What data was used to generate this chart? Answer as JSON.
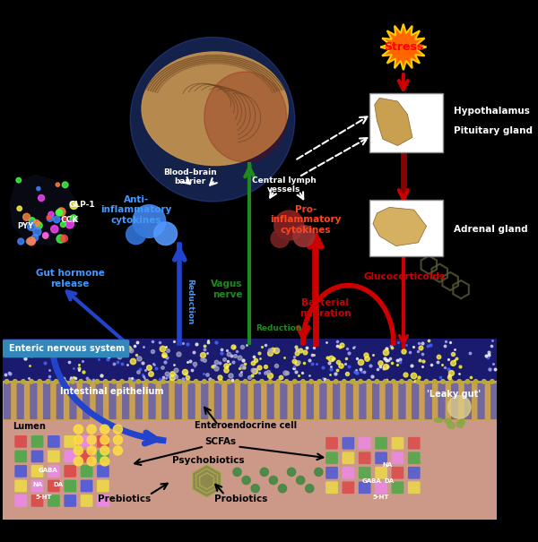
{
  "bg_color": "#000000",
  "labels": {
    "stress": "Stress",
    "hypothalamus": "Hypothalamus",
    "pituitary": "Pituitary gland",
    "adrenal": "Adrenal gland",
    "blood_brain": "Blood–brain\nbarrier",
    "central_lymph": "Central lymph\nvessels",
    "anti_inflam": "Anti-\ninflammatory\ncytokines",
    "pro_inflam": "Pro-\ninflammatory\ncytokines",
    "gut_hormone": "Gut hormone\nrelease",
    "vagus": "Vagus\nnerve",
    "glucocorticoids": "Glucocorticoids",
    "bacterial_migration": "Bacterial\nmigration",
    "enteric_ns": "Enteric nervous system",
    "intestinal_epithelium": "Intestinal epithelium",
    "lumen": "Lumen",
    "enteroendocrine": "Enteroendocrine cell",
    "leaky_gut": "'Leaky gut'",
    "scfas": "SCFAs",
    "psychobiotics": "Psychobiotics",
    "prebiotics": "Prebiotics",
    "probiotics": "Probiotics",
    "reduction1": "Reduction",
    "reduction2": "Reduction",
    "glp1": "GLP-1",
    "cck": "CCK",
    "pyy": "PYY"
  },
  "colors": {
    "red_arrow": "#cc0000",
    "blue_arrow": "#1144cc",
    "green_arrow": "#228822",
    "anti_inflam_text": "#4499ff",
    "pro_inflam_text": "#ff4422",
    "gut_hormone_text": "#4499ff",
    "vagus_text": "#228822",
    "glucocorticoids_text": "#cc2200",
    "bacterial_text": "#cc2200",
    "reduction_text": "#4499ff",
    "enteric_label_bg": "#3388cc"
  }
}
